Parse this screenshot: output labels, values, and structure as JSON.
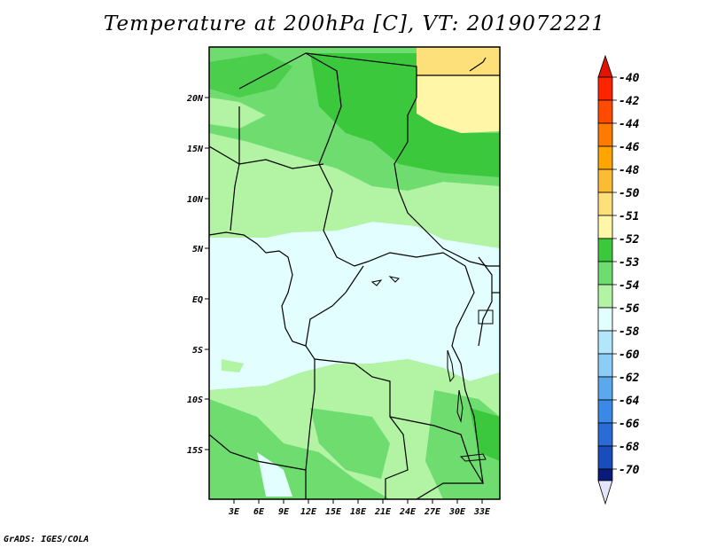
{
  "title": "Temperature at 200hPa [C], VT: 2019072221",
  "footer": "GrADS: IGES/COLA",
  "map": {
    "lat_labels": [
      "20N",
      "15N",
      "10N",
      "5N",
      "EQ",
      "5S",
      "10S",
      "15S"
    ],
    "lon_labels": [
      "3E",
      "6E",
      "9E",
      "12E",
      "15E",
      "18E",
      "21E",
      "24E",
      "27E",
      "30E",
      "33E"
    ],
    "lat_range": [
      -20,
      25
    ],
    "lon_range": [
      0,
      35
    ]
  },
  "colorbar": {
    "levels": [
      {
        "label": "-40",
        "color": "#ff2400"
      },
      {
        "label": "-42",
        "color": "#ff4a00"
      },
      {
        "label": "-44",
        "color": "#ff7a00"
      },
      {
        "label": "-46",
        "color": "#ffa400"
      },
      {
        "label": "-48",
        "color": "#fbbc35"
      },
      {
        "label": "-50",
        "color": "#fde07a"
      },
      {
        "label": "-51",
        "color": "#fff6a8"
      },
      {
        "label": "-52",
        "color": "#3cc83c"
      },
      {
        "label": "-53",
        "color": "#6fdc6f"
      },
      {
        "label": "-54",
        "color": "#b2f3a4"
      },
      {
        "label": "-56",
        "color": "#e2fefe"
      },
      {
        "label": "-58",
        "color": "#b2e6fb"
      },
      {
        "label": "-60",
        "color": "#8ccdf8"
      },
      {
        "label": "-62",
        "color": "#5ba8ef"
      },
      {
        "label": "-64",
        "color": "#3c88e6"
      },
      {
        "label": "-66",
        "color": "#2a6bd6"
      },
      {
        "label": "-68",
        "color": "#1a4cbb"
      },
      {
        "label": "-70",
        "color": "#0a2f9f"
      }
    ],
    "top_arrow_color": "#e01400",
    "bottom_arrow_color": "#e4e4fa",
    "bottom_segment_color": "#0a1a7a"
  }
}
